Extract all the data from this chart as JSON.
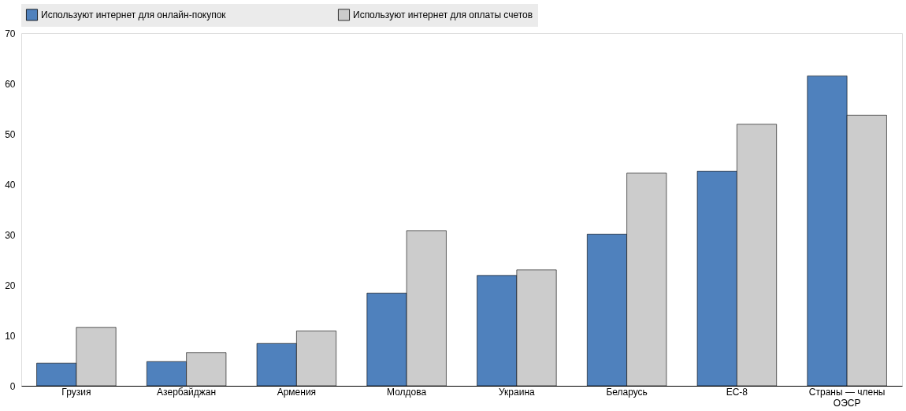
{
  "chart_data": {
    "type": "bar",
    "categories": [
      "Грузия",
      "Азербайджан",
      "Армения",
      "Молдова",
      "Украина",
      "Беларусь",
      "ЕС-8",
      "Страны — члены ОЭСР"
    ],
    "series": [
      {
        "name": "Используют интернет для онлайн-покупок",
        "color": "#4f81bd",
        "values": [
          4.5,
          4.8,
          8.4,
          18.4,
          21.9,
          30.1,
          42.6,
          61.5
        ]
      },
      {
        "name": "Используют интернет для оплаты счетов",
        "color": "#cccccc",
        "values": [
          11.6,
          6.6,
          10.9,
          30.8,
          23.0,
          42.2,
          51.9,
          53.7
        ]
      }
    ],
    "ylim": [
      0,
      70
    ],
    "yticks": [
      0,
      10,
      20,
      30,
      40,
      50,
      60,
      70
    ],
    "grid": false,
    "legend": "top"
  }
}
